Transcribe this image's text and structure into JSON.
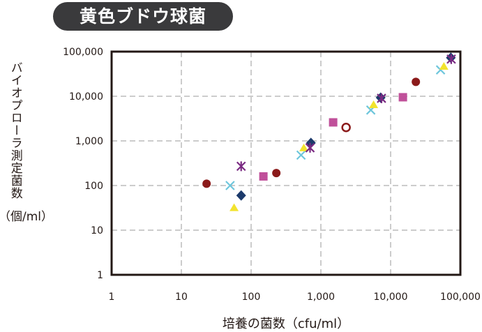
{
  "title_badge": "黄色ブドウ球菌",
  "chart_data": {
    "type": "scatter",
    "title": "黄色ブドウ球菌",
    "xlabel": "培養の菌数（cfu/ml）",
    "ylabel": "バイオプローラ測定菌数",
    "ylabel_unit": "（個/ml）",
    "xscale": "log",
    "yscale": "log",
    "xlim": [
      1,
      100000
    ],
    "ylim": [
      1,
      100000
    ],
    "grid": true,
    "x_ticks": [
      "1",
      "10",
      "100",
      "1,000",
      "10,000",
      "100,000"
    ],
    "y_ticks": [
      "1",
      "10",
      "100",
      "1,000",
      "10,000",
      "100,000"
    ],
    "series": [
      {
        "marker": "circle",
        "color": "#8b1a1a",
        "points": [
          [
            23,
            110
          ],
          [
            230,
            190
          ],
          [
            23000,
            21000
          ]
        ]
      },
      {
        "marker": "circle-open",
        "color": "#8b1a1a",
        "points": [
          [
            2300,
            2000
          ]
        ]
      },
      {
        "marker": "square",
        "color": "#c0509a",
        "points": [
          [
            150,
            160
          ],
          [
            1500,
            2600
          ],
          [
            15000,
            9500
          ]
        ]
      },
      {
        "marker": "x",
        "color": "#6ec6dc",
        "points": [
          [
            50,
            100
          ],
          [
            520,
            480
          ],
          [
            5200,
            4900
          ],
          [
            52000,
            39000
          ]
        ]
      },
      {
        "marker": "triangle",
        "color": "#f2e32e",
        "points": [
          [
            57,
            32
          ],
          [
            570,
            700
          ],
          [
            5700,
            6500
          ],
          [
            58000,
            47000
          ]
        ]
      },
      {
        "marker": "diamond",
        "color": "#1c3a6b",
        "points": [
          [
            72,
            60
          ],
          [
            720,
            900
          ],
          [
            7200,
            9300
          ],
          [
            73000,
            73000
          ]
        ]
      },
      {
        "marker": "asterisk",
        "color": "#7a2a82",
        "points": [
          [
            72,
            270
          ],
          [
            700,
            700
          ],
          [
            7400,
            9000
          ],
          [
            74000,
            68000
          ]
        ]
      }
    ]
  }
}
